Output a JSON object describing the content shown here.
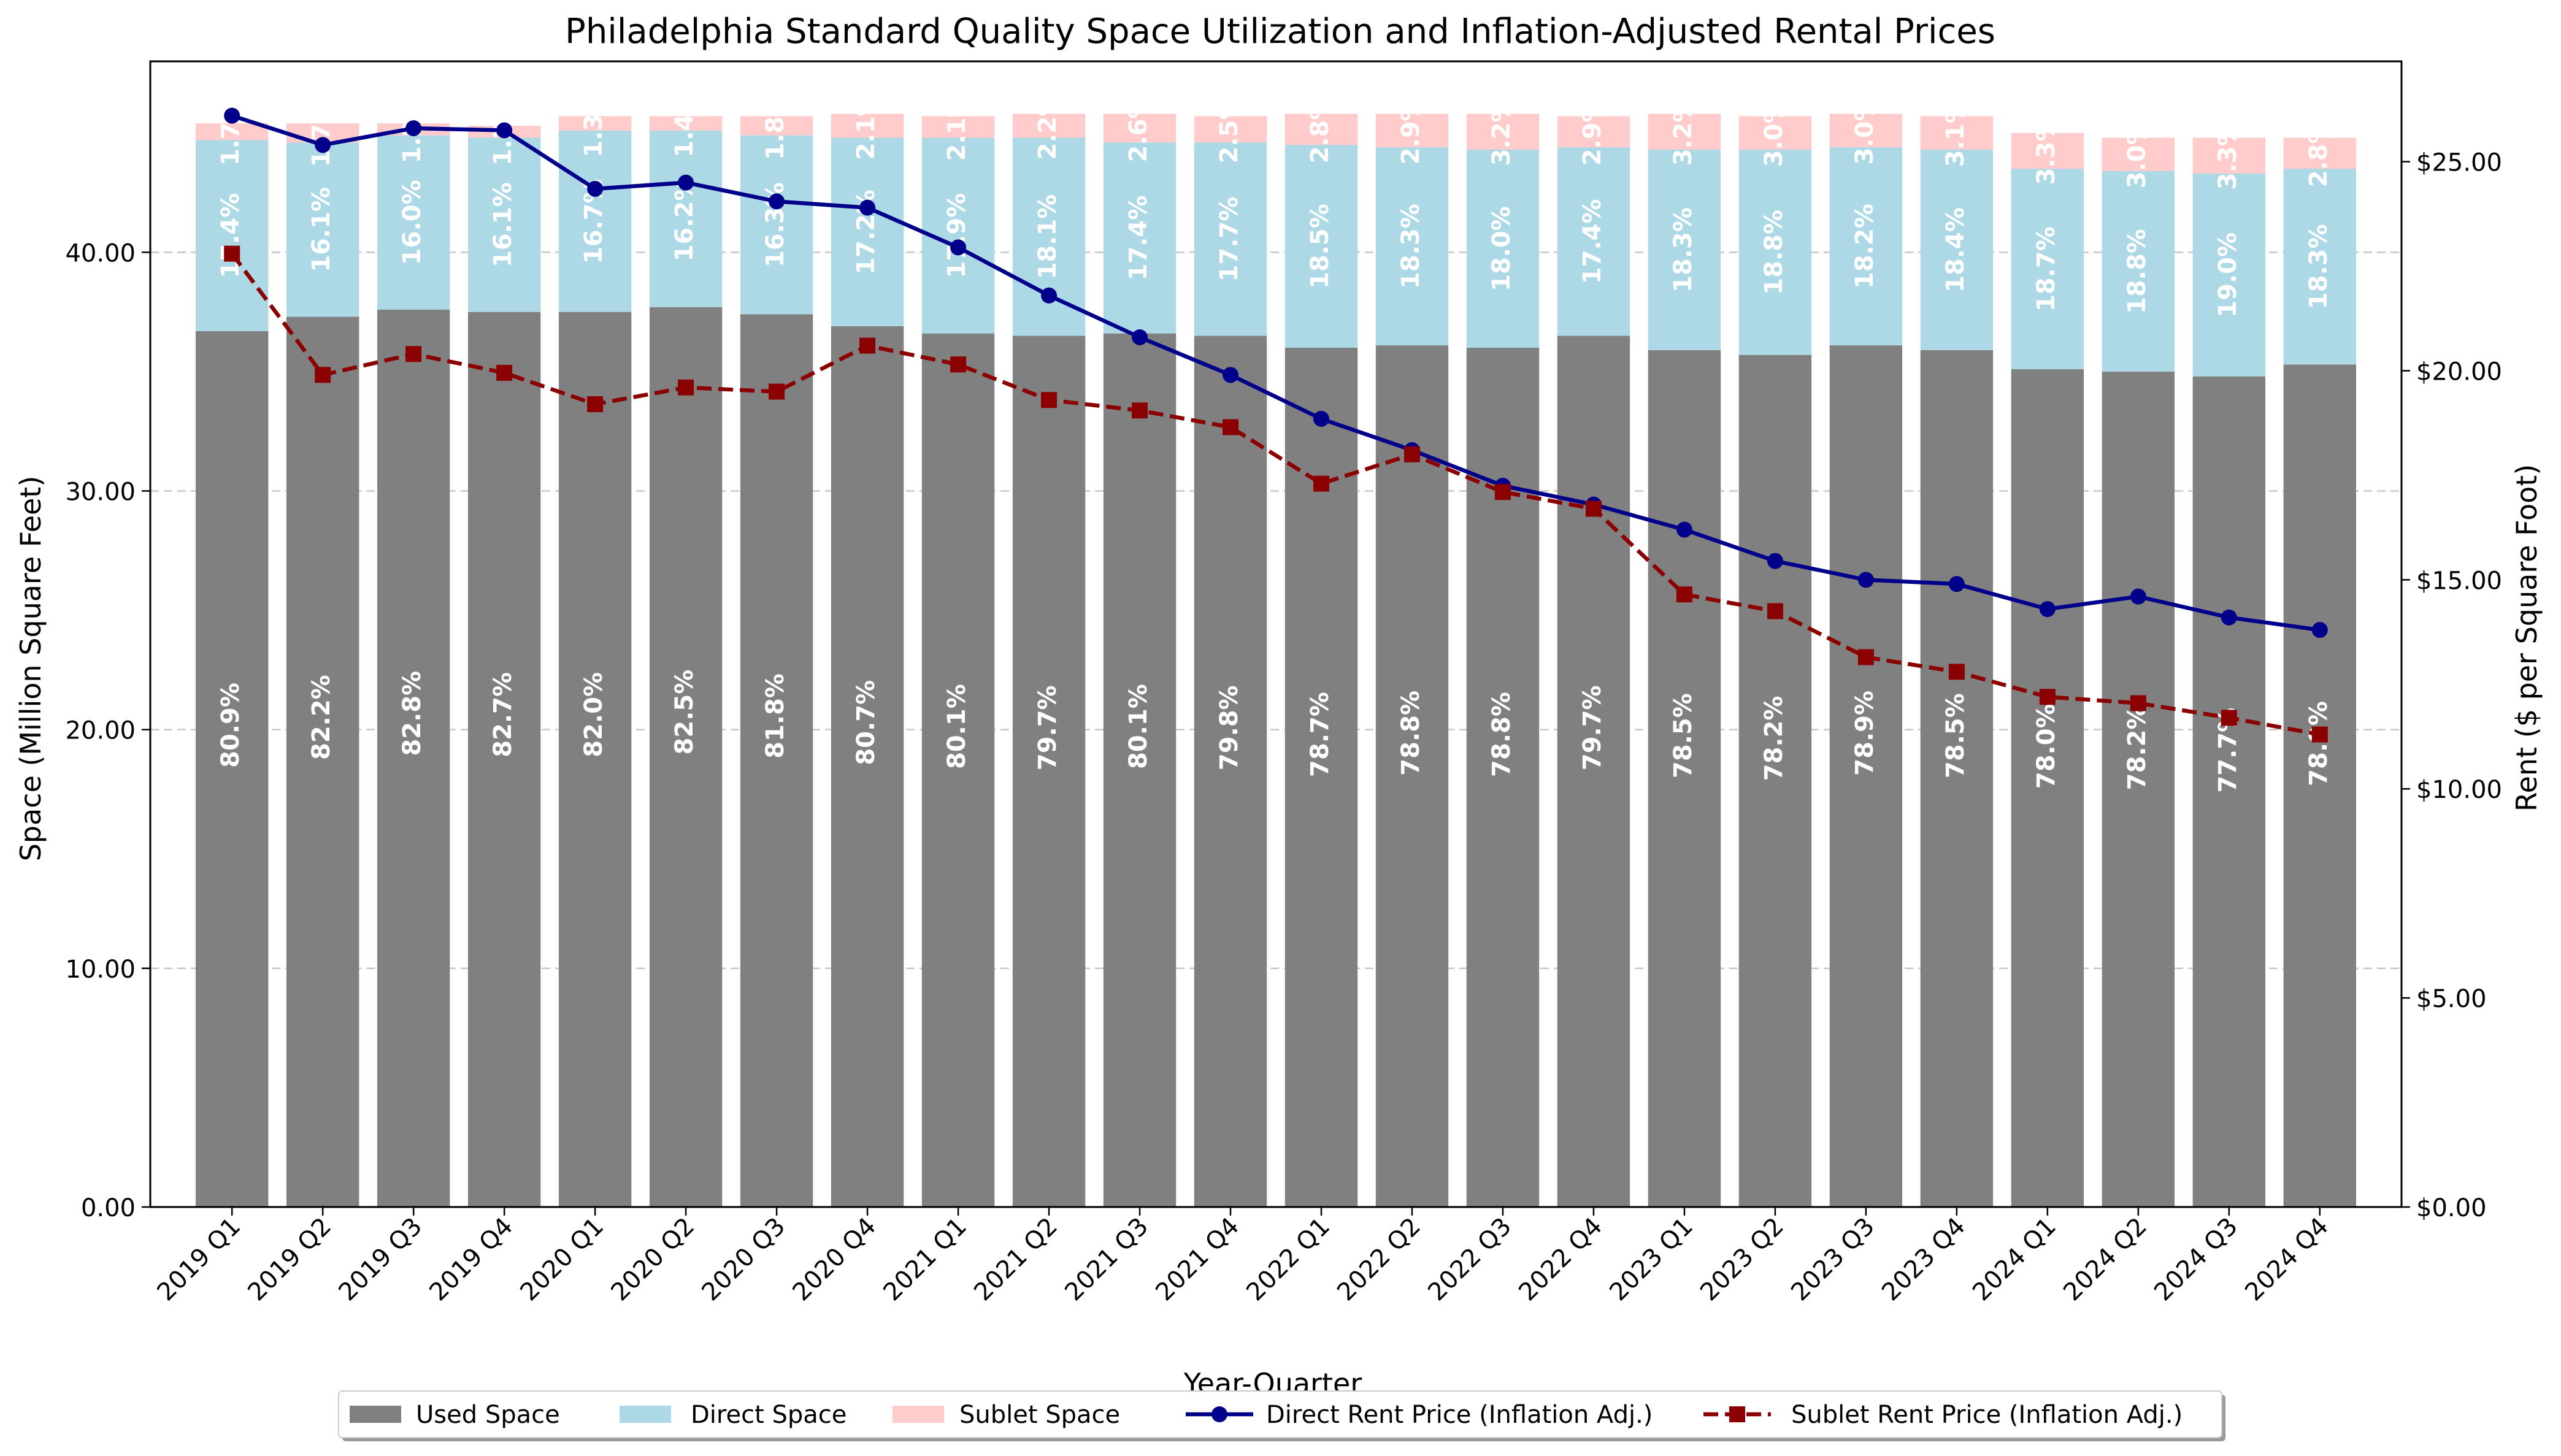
{
  "chart_data": {
    "type": "bar",
    "title": "Philadelphia Standard Quality Space Utilization and Inflation-Adjusted Rental Prices",
    "xlabel": "Year-Quarter",
    "ylabel": "Space (Million Square Feet)",
    "y2label": "Rent ($ per Square Foot)",
    "ylim": [
      0,
      48
    ],
    "y2lim": [
      0,
      27.4
    ],
    "yticks": [
      "0.00",
      "10.00",
      "20.00",
      "30.00",
      "40.00"
    ],
    "y2ticks": [
      "$0.00",
      "$5.00",
      "$10.00",
      "$15.00",
      "$20.00",
      "$25.00"
    ],
    "grid": "horizontal dashed",
    "legend_position": "bottom",
    "categories": [
      "2019 Q1",
      "2019 Q2",
      "2019 Q3",
      "2019 Q4",
      "2020 Q1",
      "2020 Q2",
      "2020 Q3",
      "2020 Q4",
      "2021 Q1",
      "2021 Q2",
      "2021 Q3",
      "2021 Q4",
      "2022 Q1",
      "2022 Q2",
      "2022 Q3",
      "2022 Q4",
      "2023 Q1",
      "2023 Q2",
      "2023 Q3",
      "2023 Q4",
      "2024 Q1",
      "2024 Q2",
      "2024 Q3",
      "2024 Q4"
    ],
    "series": [
      {
        "name": "Used Space",
        "kind": "stacked-bar",
        "color": "#808080",
        "values": [
          36.7,
          37.3,
          37.6,
          37.5,
          37.5,
          37.7,
          37.4,
          36.9,
          36.6,
          36.5,
          36.6,
          36.5,
          36.0,
          36.1,
          36.0,
          36.5,
          35.9,
          35.7,
          36.1,
          35.9,
          35.1,
          35.0,
          34.8,
          35.3
        ],
        "labels": [
          "80.9%",
          "82.2%",
          "82.8%",
          "82.7%",
          "82.0%",
          "82.5%",
          "81.8%",
          "80.7%",
          "80.1%",
          "79.7%",
          "80.1%",
          "79.8%",
          "78.7%",
          "78.8%",
          "78.8%",
          "79.7%",
          "78.5%",
          "78.2%",
          "78.9%",
          "78.5%",
          "78.0%",
          "78.2%",
          "77.7%",
          "78.9%"
        ]
      },
      {
        "name": "Direct Space",
        "kind": "stacked-bar",
        "color": "#add8e6",
        "values": [
          8.0,
          7.3,
          7.3,
          7.3,
          7.6,
          7.4,
          7.5,
          7.9,
          8.2,
          8.3,
          8.0,
          8.1,
          8.5,
          8.3,
          8.3,
          7.9,
          8.4,
          8.6,
          8.3,
          8.4,
          8.4,
          8.4,
          8.5,
          8.2
        ],
        "labels": [
          "17.4%",
          "16.1%",
          "16.0%",
          "16.1%",
          "16.7%",
          "16.2%",
          "16.3%",
          "17.2%",
          "17.9%",
          "18.1%",
          "17.4%",
          "17.7%",
          "18.5%",
          "18.3%",
          "18.0%",
          "17.4%",
          "18.3%",
          "18.8%",
          "18.2%",
          "18.4%",
          "18.7%",
          "18.8%",
          "19.0%",
          "18.3%"
        ]
      },
      {
        "name": "Sublet Space",
        "kind": "stacked-bar",
        "color": "#ffcccb",
        "values": [
          0.7,
          0.8,
          0.5,
          0.5,
          0.6,
          0.6,
          0.8,
          1.0,
          0.9,
          1.0,
          1.2,
          1.1,
          1.3,
          1.4,
          1.5,
          1.3,
          1.5,
          1.4,
          1.4,
          1.4,
          1.5,
          1.4,
          1.5,
          1.3
        ],
        "labels": [
          "1.7%",
          "1.7%",
          "1.2%",
          "1.2%",
          "1.3%",
          "1.4%",
          "1.8%",
          "2.1%",
          "2.1%",
          "2.2%",
          "2.6%",
          "2.5%",
          "2.8%",
          "2.9%",
          "3.2%",
          "2.9%",
          "3.2%",
          "3.0%",
          "3.0%",
          "3.1%",
          "3.3%",
          "3.0%",
          "3.3%",
          "2.8%"
        ]
      },
      {
        "name": "Direct Rent Price (Inflation Adj.)",
        "kind": "line",
        "axis": "right",
        "color": "#00008b",
        "values": [
          26.1,
          25.4,
          25.8,
          25.75,
          24.35,
          24.5,
          24.05,
          23.9,
          22.95,
          21.8,
          20.8,
          19.9,
          18.85,
          18.1,
          17.25,
          16.8,
          16.2,
          15.45,
          15.0,
          14.9,
          14.3,
          14.6,
          14.1,
          13.8
        ]
      },
      {
        "name": "Sublet Rent Price (Inflation Adj.)",
        "kind": "line",
        "axis": "right",
        "color": "#8b0000",
        "values": [
          22.8,
          19.9,
          20.4,
          19.95,
          19.2,
          19.6,
          19.5,
          20.6,
          20.15,
          19.3,
          19.05,
          18.65,
          17.3,
          18.0,
          17.1,
          16.7,
          14.65,
          14.25,
          13.15,
          12.8,
          12.2,
          12.05,
          11.7,
          11.3
        ]
      }
    ]
  }
}
